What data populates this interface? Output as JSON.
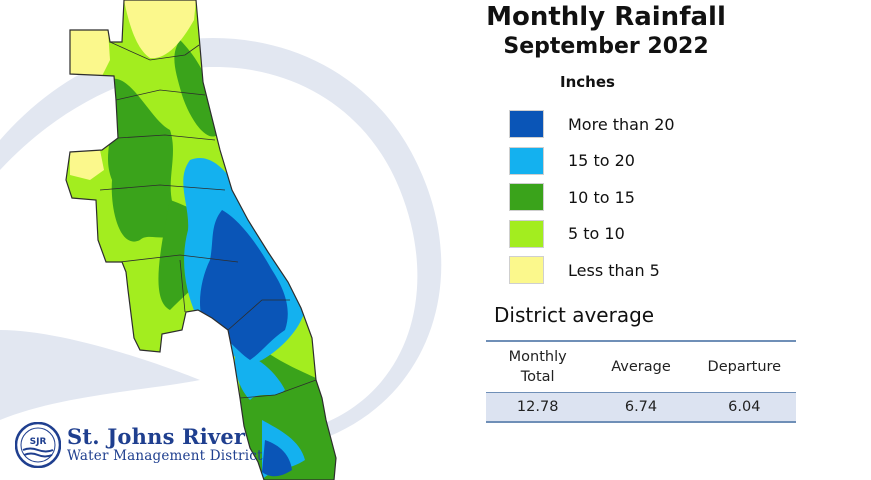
{
  "title": "Monthly Rainfall",
  "subtitle": "September 2022",
  "units": "Inches",
  "legend": {
    "items": [
      {
        "label": "More than 20",
        "color": "#0a55b7"
      },
      {
        "label": "15 to 20",
        "color": "#14b1ef"
      },
      {
        "label": "10 to 15",
        "color": "#3aa31b"
      },
      {
        "label": "5 to 10",
        "color": "#a3ed1f"
      },
      {
        "label": "Less than 5",
        "color": "#fbf88c"
      }
    ]
  },
  "district_average": {
    "heading": "District average",
    "columns": [
      "Monthly\nTotal",
      "Average",
      "Departure"
    ],
    "values": [
      "12.78",
      "6.74",
      "6.04"
    ]
  },
  "logo": {
    "line1": "St. Johns River",
    "line2": "Water Management District",
    "badge_text": "SJR",
    "color": "#1f3f8f"
  },
  "colors": {
    "table_line": "#6f8fb7",
    "table_fill": "#dce3f1",
    "swoosh": "#e2e7f1"
  }
}
